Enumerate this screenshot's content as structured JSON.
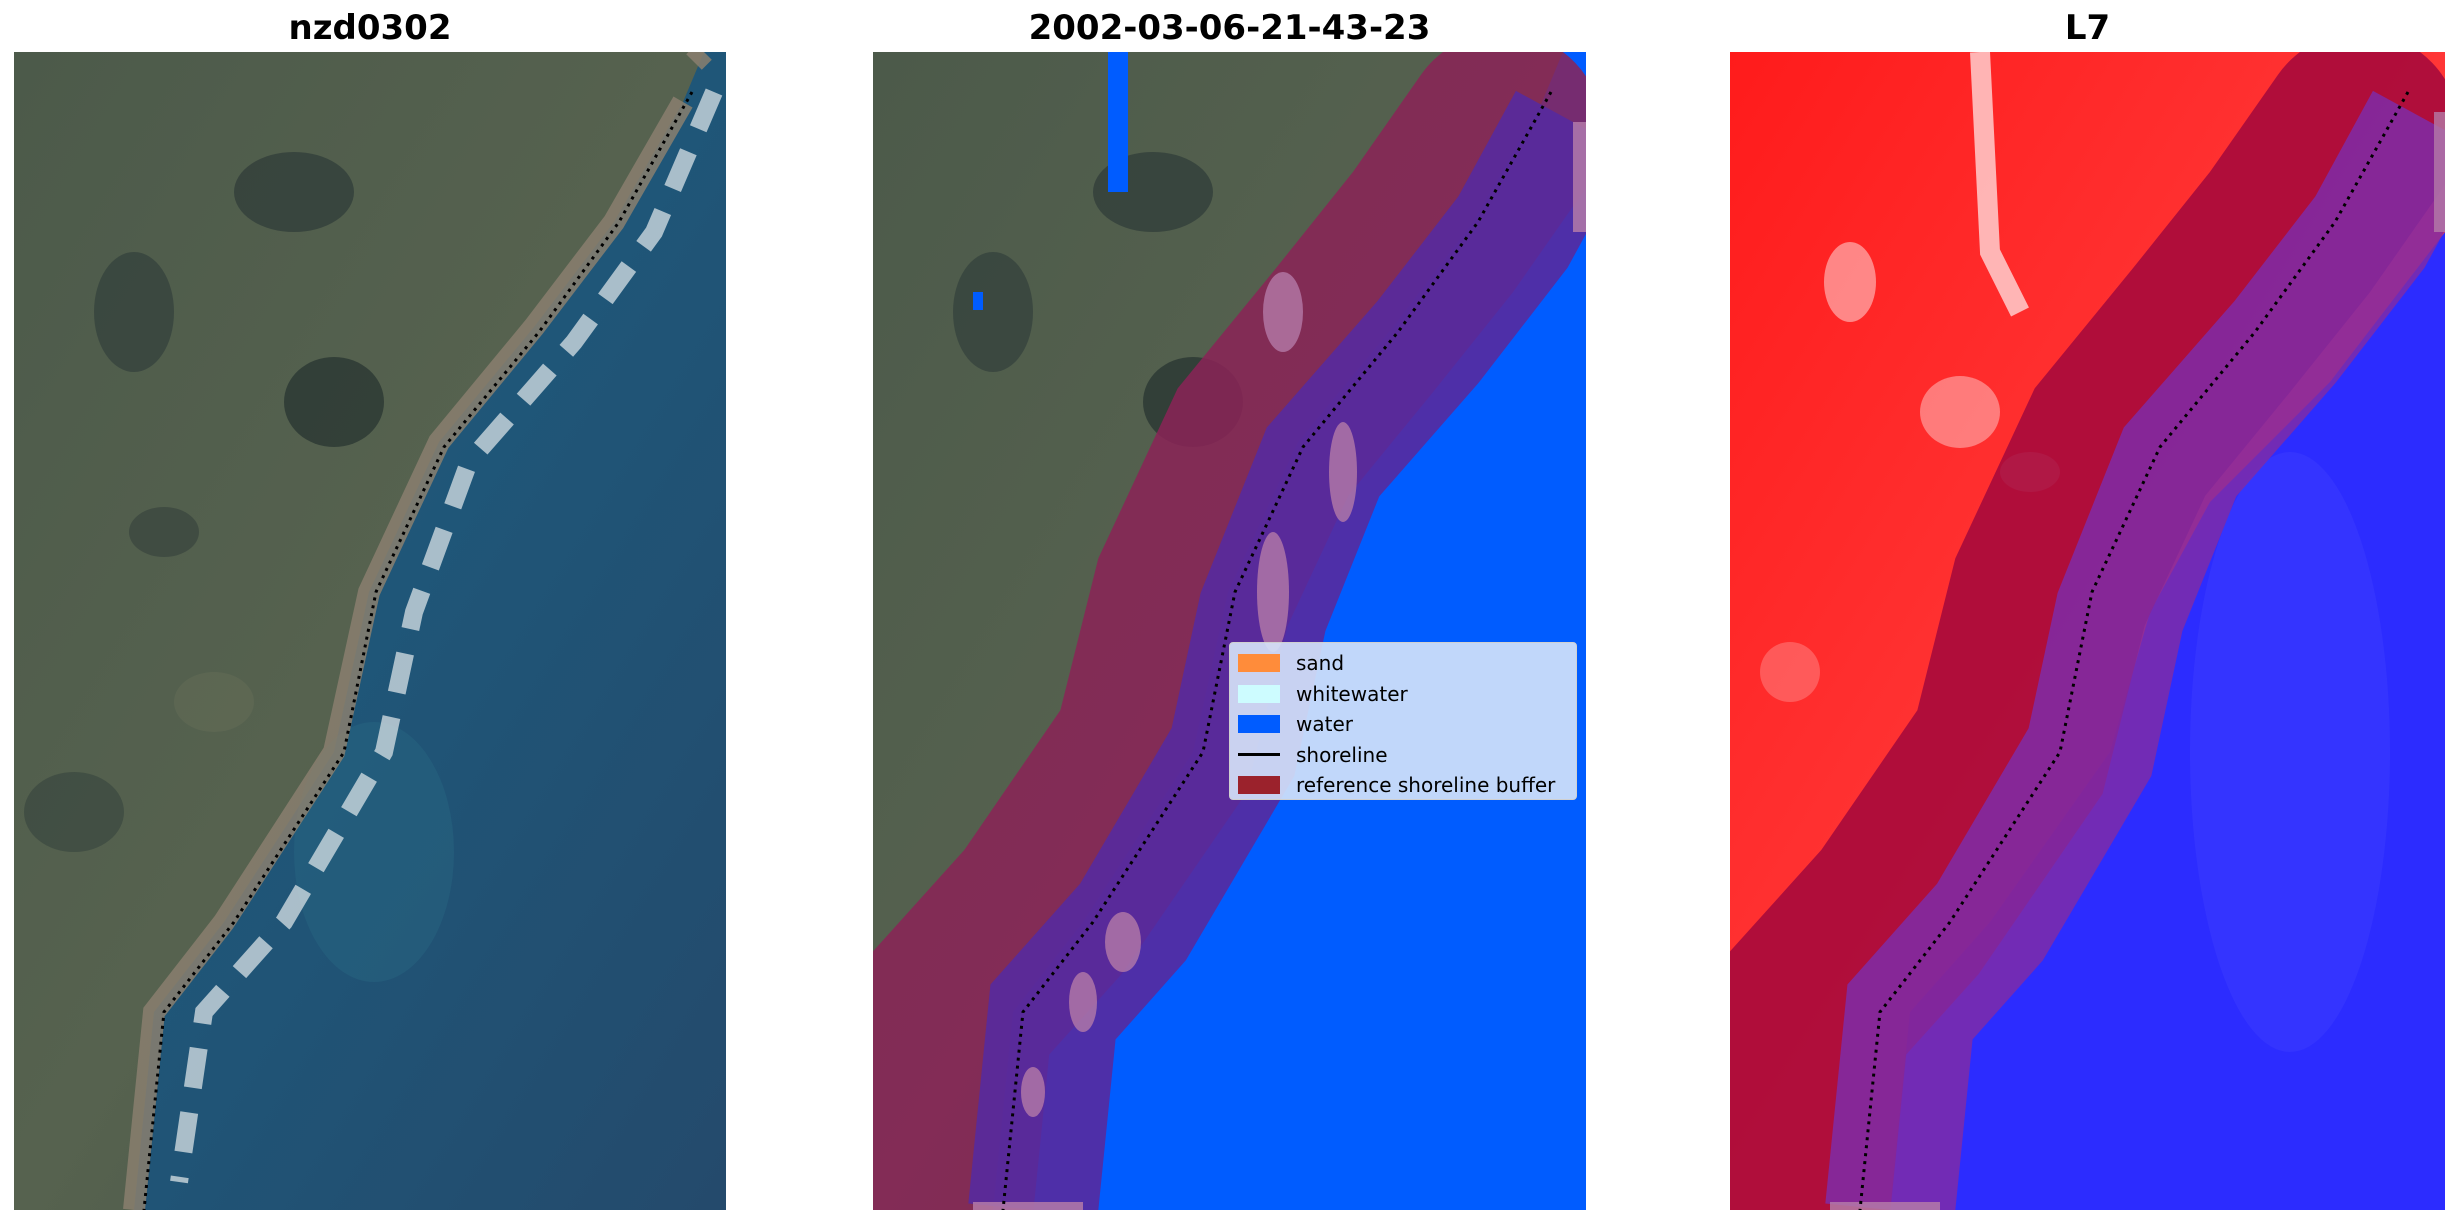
{
  "panels": [
    {
      "title": "nzd0302",
      "kind": "rgb"
    },
    {
      "title": "2002-03-06-21-43-23",
      "kind": "classified"
    },
    {
      "title": "L7",
      "kind": "index"
    }
  ],
  "legend": {
    "items": [
      {
        "label": "sand",
        "color": "#ff8c3a",
        "type": "patch"
      },
      {
        "label": "whitewater",
        "color": "#cdfcff",
        "type": "patch"
      },
      {
        "label": "water",
        "color": "#005cff",
        "type": "patch"
      },
      {
        "label": "shoreline",
        "color": "#000000",
        "type": "line"
      },
      {
        "label": "reference shoreline buffer",
        "color": "#9b222c",
        "type": "patch"
      }
    ]
  }
}
